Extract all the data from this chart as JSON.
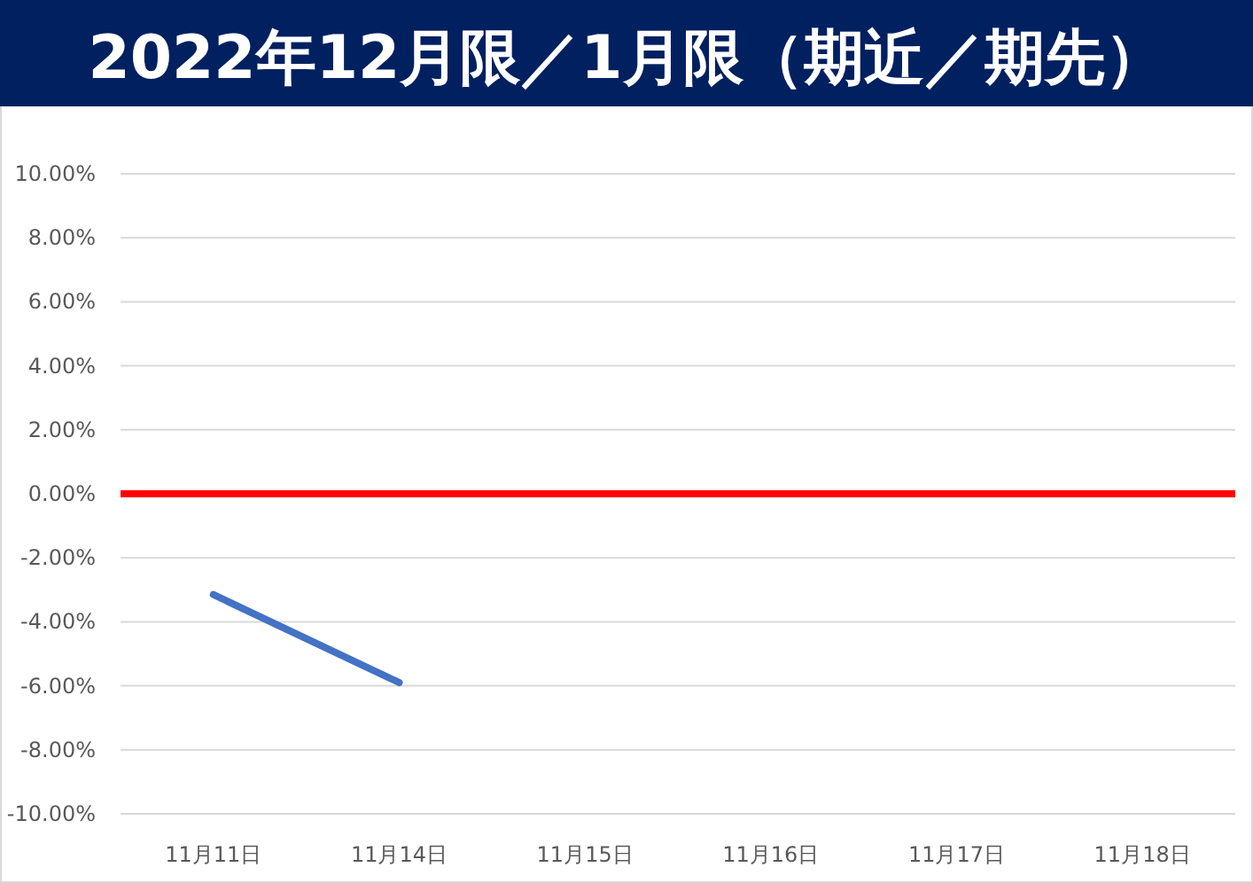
{
  "chart_data": {
    "type": "line",
    "title": "2022年12月限／1月限（期近／期先）",
    "categories": [
      "11月11日",
      "11月14日",
      "11月15日",
      "11月16日",
      "11月17日",
      "11月18日"
    ],
    "series": [
      {
        "color": "#4472c4",
        "values": [
          -3.15,
          -5.9,
          null,
          null,
          null,
          null
        ]
      }
    ],
    "ylim": [
      -10,
      10
    ],
    "yticks": [
      {
        "value": -10,
        "label": "-10.00%"
      },
      {
        "value": -8,
        "label": "-8.00%"
      },
      {
        "value": -6,
        "label": "-6.00%"
      },
      {
        "value": -4,
        "label": "-4.00%"
      },
      {
        "value": -2,
        "label": "-2.00%"
      },
      {
        "value": 0,
        "label": "0.00%"
      },
      {
        "value": 2,
        "label": "2.00%"
      },
      {
        "value": 4,
        "label": "4.00%"
      },
      {
        "value": 6,
        "label": "6.00%"
      },
      {
        "value": 8,
        "label": "8.00%"
      },
      {
        "value": 10,
        "label": "10.00%"
      }
    ],
    "ref_lines": [
      {
        "axis": "y",
        "value": 0,
        "color": "#ff0000"
      }
    ],
    "grid": "y",
    "marker": "none",
    "line_style": "solid"
  }
}
